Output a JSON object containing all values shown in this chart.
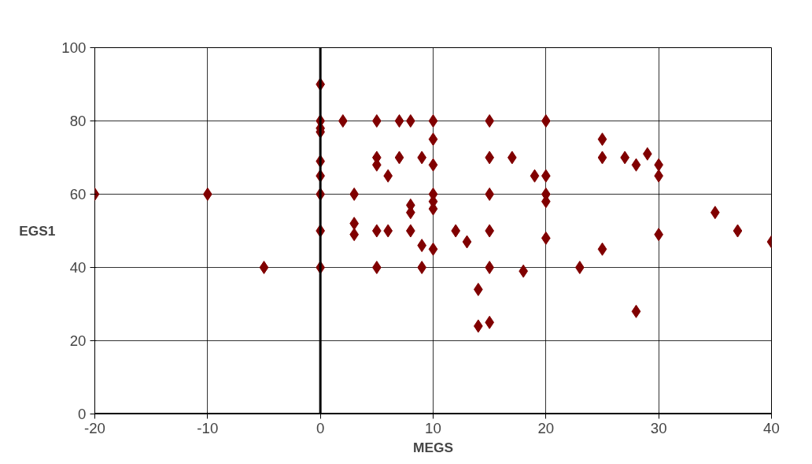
{
  "chart_data": {
    "type": "scatter",
    "xlabel": "MEGS",
    "ylabel": "EGS1",
    "x": [
      -20,
      -10,
      -5,
      0,
      0,
      0,
      0,
      0,
      0,
      0,
      0,
      0,
      2,
      3,
      3,
      3,
      5,
      5,
      5,
      5,
      5,
      6,
      6,
      7,
      7,
      8,
      8,
      8,
      8,
      9,
      9,
      9,
      10,
      10,
      10,
      10,
      10,
      10,
      10,
      12,
      13,
      14,
      14,
      15,
      15,
      15,
      15,
      15,
      15,
      17,
      18,
      19,
      20,
      20,
      20,
      20,
      20,
      23,
      25,
      25,
      25,
      27,
      28,
      28,
      29,
      30,
      30,
      30,
      35,
      37,
      40
    ],
    "values": [
      60,
      60,
      40,
      90,
      80,
      78,
      77,
      69,
      65,
      60,
      50,
      40,
      80,
      60,
      52,
      49,
      80,
      70,
      68,
      50,
      40,
      65,
      50,
      80,
      70,
      80,
      57,
      55,
      50,
      70,
      46,
      40,
      80,
      75,
      68,
      60,
      58,
      56,
      45,
      50,
      47,
      34,
      24,
      80,
      70,
      60,
      50,
      40,
      25,
      70,
      39,
      65,
      80,
      65,
      60,
      58,
      48,
      40,
      75,
      70,
      45,
      70,
      68,
      28,
      71,
      68,
      65,
      49,
      55,
      50,
      47
    ],
    "color": "#800000",
    "marker": "diamond",
    "grid": true,
    "xlim": [
      -20,
      40
    ],
    "ylim": [
      0,
      100
    ],
    "xticks": [
      -20,
      -10,
      0,
      10,
      20,
      30,
      40
    ],
    "yticks": [
      0,
      20,
      40,
      60,
      80,
      100
    ]
  }
}
